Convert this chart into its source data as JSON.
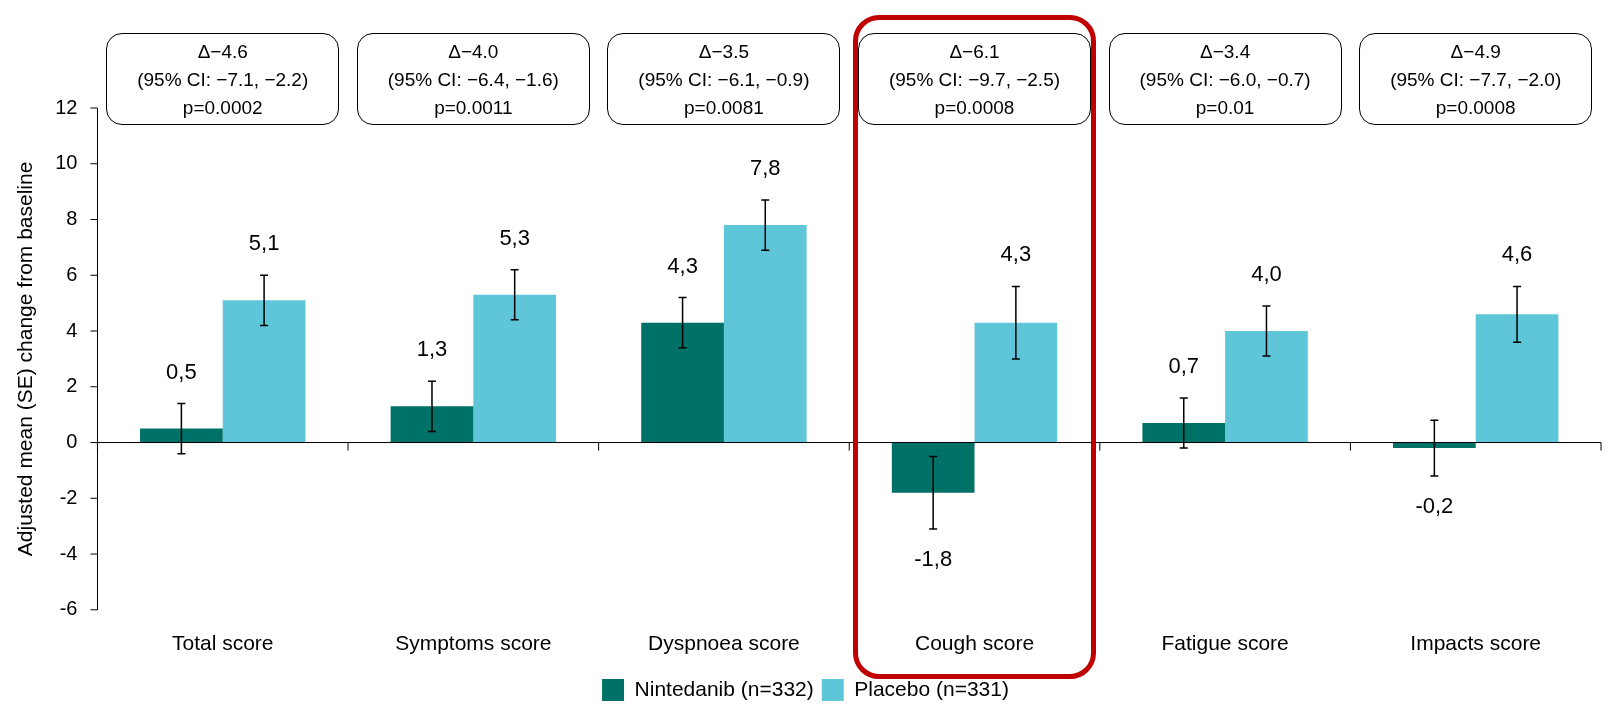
{
  "chart_data": {
    "type": "bar",
    "ylabel": "Adjusted mean (SE) change from baseline",
    "categories": [
      "Total score",
      "Symptoms score",
      "Dyspnoea score",
      "Cough score",
      "Fatigue score",
      "Impacts score"
    ],
    "series": [
      {
        "name": "Nintedanib (n=332)",
        "color": "#007167",
        "values": [
          0.5,
          1.3,
          4.3,
          -1.8,
          0.7,
          -0.2
        ],
        "errors": [
          0.9,
          0.9,
          0.9,
          1.3,
          0.9,
          1.0
        ],
        "value_labels": [
          "0,5",
          "1,3",
          "4,3",
          "-1,8",
          "0,7",
          "-0,2"
        ]
      },
      {
        "name": "Placebo (n=331)",
        "color": "#5fc6d9",
        "values": [
          5.1,
          5.3,
          7.8,
          4.3,
          4.0,
          4.6
        ],
        "errors": [
          0.9,
          0.9,
          0.9,
          1.3,
          0.9,
          1.0
        ],
        "value_labels": [
          "5,1",
          "5,3",
          "7,8",
          "4,3",
          "4,0",
          "4,6"
        ]
      }
    ],
    "ylim": [
      -6,
      12
    ],
    "yticks": [
      -6,
      -4,
      -2,
      0,
      2,
      4,
      6,
      8,
      10,
      12
    ],
    "grid": false,
    "legend": "bottom",
    "ref_lines": [
      {
        "axis": "y",
        "value": 0,
        "color": "#000000"
      }
    ],
    "annotations": [
      "Δ−4.6\n(95% CI: −7.1, −2.2)\np=0.0002",
      "Δ−4.0\n(95% CI: −6.4, −1.6)\np=0.0011",
      "Δ−3.5\n(95% CI: −6.1, −0.9)\np=0.0081",
      "Δ−6.1\n(95% CI: −9.7, −2.5)\np=0.0008",
      "Δ−3.4\n(95% CI: −6.0, −0.7)\np=0.01",
      "Δ−4.9\n(95% CI: −7.7, −2.0)\np=0.0008"
    ]
  }
}
